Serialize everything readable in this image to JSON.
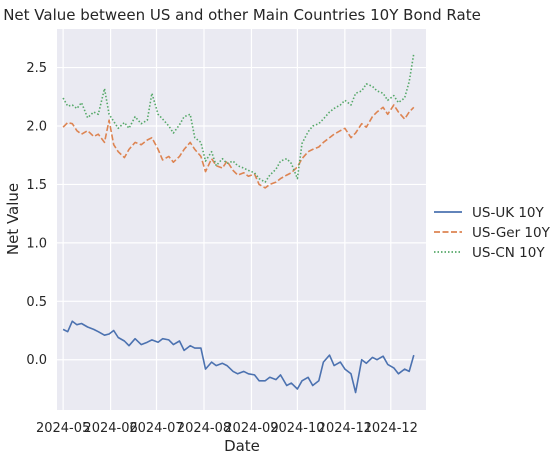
{
  "chart_data": {
    "type": "line",
    "title": "Net Value between US and other Main Countries 10Y Bond Rate",
    "xlabel": "Date",
    "ylabel": "Net Value",
    "xlim": [
      "2024-04-27",
      "2024-12-24"
    ],
    "ylim": [
      -0.43,
      2.83
    ],
    "x_ticks": [
      "2024-05-01",
      "2024-06-01",
      "2024-07-01",
      "2024-08-01",
      "2024-09-01",
      "2024-10-01",
      "2024-11-01",
      "2024-12-01"
    ],
    "x_tick_labels": [
      "2024-05",
      "2024-06",
      "2024-07",
      "2024-08",
      "2024-09",
      "2024-10",
      "2024-11",
      "2024-12"
    ],
    "y_ticks": [
      0.0,
      0.5,
      1.0,
      1.5,
      2.0,
      2.5
    ],
    "y_tick_labels": [
      "0.0",
      "0.5",
      "1.0",
      "1.5",
      "2.0",
      "2.5"
    ],
    "grid": true,
    "legend_position": "right",
    "background_color": "#eaeaf2",
    "series": [
      {
        "name": "US-UK 10Y",
        "color": "#4c72b0",
        "dash": "solid",
        "points": [
          [
            "2024-05-01",
            0.26
          ],
          [
            "2024-05-04",
            0.24
          ],
          [
            "2024-05-07",
            0.33
          ],
          [
            "2024-05-10",
            0.3
          ],
          [
            "2024-05-13",
            0.31
          ],
          [
            "2024-05-17",
            0.28
          ],
          [
            "2024-05-21",
            0.26
          ],
          [
            "2024-05-24",
            0.24
          ],
          [
            "2024-05-28",
            0.21
          ],
          [
            "2024-05-31",
            0.22
          ],
          [
            "2024-06-03",
            0.25
          ],
          [
            "2024-06-06",
            0.19
          ],
          [
            "2024-06-10",
            0.16
          ],
          [
            "2024-06-13",
            0.12
          ],
          [
            "2024-06-17",
            0.18
          ],
          [
            "2024-06-21",
            0.13
          ],
          [
            "2024-06-25",
            0.15
          ],
          [
            "2024-06-28",
            0.17
          ],
          [
            "2024-07-02",
            0.15
          ],
          [
            "2024-07-05",
            0.18
          ],
          [
            "2024-07-09",
            0.17
          ],
          [
            "2024-07-12",
            0.13
          ],
          [
            "2024-07-16",
            0.16
          ],
          [
            "2024-07-19",
            0.08
          ],
          [
            "2024-07-23",
            0.12
          ],
          [
            "2024-07-26",
            0.1
          ],
          [
            "2024-07-30",
            0.1
          ],
          [
            "2024-08-02",
            -0.08
          ],
          [
            "2024-08-06",
            -0.02
          ],
          [
            "2024-08-09",
            -0.05
          ],
          [
            "2024-08-13",
            -0.03
          ],
          [
            "2024-08-16",
            -0.05
          ],
          [
            "2024-08-20",
            -0.1
          ],
          [
            "2024-08-23",
            -0.12
          ],
          [
            "2024-08-27",
            -0.1
          ],
          [
            "2024-08-30",
            -0.12
          ],
          [
            "2024-09-03",
            -0.13
          ],
          [
            "2024-09-06",
            -0.18
          ],
          [
            "2024-09-10",
            -0.18
          ],
          [
            "2024-09-13",
            -0.15
          ],
          [
            "2024-09-17",
            -0.17
          ],
          [
            "2024-09-20",
            -0.13
          ],
          [
            "2024-09-24",
            -0.22
          ],
          [
            "2024-09-27",
            -0.2
          ],
          [
            "2024-10-01",
            -0.25
          ],
          [
            "2024-10-04",
            -0.18
          ],
          [
            "2024-10-08",
            -0.15
          ],
          [
            "2024-10-11",
            -0.22
          ],
          [
            "2024-10-15",
            -0.18
          ],
          [
            "2024-10-18",
            -0.02
          ],
          [
            "2024-10-22",
            0.04
          ],
          [
            "2024-10-25",
            -0.05
          ],
          [
            "2024-10-29",
            -0.02
          ],
          [
            "2024-11-01",
            -0.08
          ],
          [
            "2024-11-05",
            -0.12
          ],
          [
            "2024-11-08",
            -0.28
          ],
          [
            "2024-11-12",
            0.0
          ],
          [
            "2024-11-15",
            -0.03
          ],
          [
            "2024-11-19",
            0.02
          ],
          [
            "2024-11-22",
            0.0
          ],
          [
            "2024-11-26",
            0.03
          ],
          [
            "2024-11-29",
            -0.04
          ],
          [
            "2024-12-03",
            -0.07
          ],
          [
            "2024-12-06",
            -0.12
          ],
          [
            "2024-12-10",
            -0.08
          ],
          [
            "2024-12-13",
            -0.1
          ],
          [
            "2024-12-16",
            0.04
          ]
        ]
      },
      {
        "name": "US-Ger 10Y",
        "color": "#dd8452",
        "dash": "dashed",
        "points": [
          [
            "2024-05-01",
            1.99
          ],
          [
            "2024-05-04",
            2.03
          ],
          [
            "2024-05-07",
            2.02
          ],
          [
            "2024-05-10",
            1.96
          ],
          [
            "2024-05-13",
            1.93
          ],
          [
            "2024-05-17",
            1.96
          ],
          [
            "2024-05-21",
            1.91
          ],
          [
            "2024-05-24",
            1.93
          ],
          [
            "2024-05-28",
            1.86
          ],
          [
            "2024-05-31",
            2.05
          ],
          [
            "2024-06-03",
            1.84
          ],
          [
            "2024-06-06",
            1.78
          ],
          [
            "2024-06-10",
            1.73
          ],
          [
            "2024-06-13",
            1.8
          ],
          [
            "2024-06-17",
            1.86
          ],
          [
            "2024-06-21",
            1.84
          ],
          [
            "2024-06-25",
            1.88
          ],
          [
            "2024-06-28",
            1.9
          ],
          [
            "2024-07-02",
            1.8
          ],
          [
            "2024-07-05",
            1.71
          ],
          [
            "2024-07-09",
            1.74
          ],
          [
            "2024-07-12",
            1.69
          ],
          [
            "2024-07-16",
            1.74
          ],
          [
            "2024-07-19",
            1.8
          ],
          [
            "2024-07-23",
            1.86
          ],
          [
            "2024-07-26",
            1.8
          ],
          [
            "2024-07-30",
            1.74
          ],
          [
            "2024-08-02",
            1.61
          ],
          [
            "2024-08-06",
            1.72
          ],
          [
            "2024-08-09",
            1.66
          ],
          [
            "2024-08-13",
            1.64
          ],
          [
            "2024-08-16",
            1.7
          ],
          [
            "2024-08-20",
            1.62
          ],
          [
            "2024-08-23",
            1.58
          ],
          [
            "2024-08-27",
            1.6
          ],
          [
            "2024-08-30",
            1.57
          ],
          [
            "2024-09-03",
            1.59
          ],
          [
            "2024-09-06",
            1.5
          ],
          [
            "2024-09-10",
            1.47
          ],
          [
            "2024-09-13",
            1.5
          ],
          [
            "2024-09-17",
            1.52
          ],
          [
            "2024-09-20",
            1.55
          ],
          [
            "2024-09-24",
            1.58
          ],
          [
            "2024-09-27",
            1.6
          ],
          [
            "2024-10-01",
            1.65
          ],
          [
            "2024-10-04",
            1.72
          ],
          [
            "2024-10-08",
            1.78
          ],
          [
            "2024-10-11",
            1.8
          ],
          [
            "2024-10-15",
            1.82
          ],
          [
            "2024-10-18",
            1.86
          ],
          [
            "2024-10-22",
            1.9
          ],
          [
            "2024-10-25",
            1.93
          ],
          [
            "2024-10-29",
            1.96
          ],
          [
            "2024-11-01",
            1.98
          ],
          [
            "2024-11-05",
            1.9
          ],
          [
            "2024-11-08",
            1.94
          ],
          [
            "2024-11-12",
            2.02
          ],
          [
            "2024-11-15",
            1.99
          ],
          [
            "2024-11-19",
            2.08
          ],
          [
            "2024-11-22",
            2.12
          ],
          [
            "2024-11-26",
            2.16
          ],
          [
            "2024-11-29",
            2.1
          ],
          [
            "2024-12-03",
            2.18
          ],
          [
            "2024-12-06",
            2.12
          ],
          [
            "2024-12-10",
            2.06
          ],
          [
            "2024-12-13",
            2.12
          ],
          [
            "2024-12-16",
            2.16
          ]
        ]
      },
      {
        "name": "US-CN 10Y",
        "color": "#55a868",
        "dash": "dotted",
        "points": [
          [
            "2024-05-01",
            2.24
          ],
          [
            "2024-05-04",
            2.17
          ],
          [
            "2024-05-07",
            2.18
          ],
          [
            "2024-05-10",
            2.15
          ],
          [
            "2024-05-13",
            2.2
          ],
          [
            "2024-05-17",
            2.07
          ],
          [
            "2024-05-21",
            2.12
          ],
          [
            "2024-05-24",
            2.1
          ],
          [
            "2024-05-28",
            2.32
          ],
          [
            "2024-05-31",
            2.1
          ],
          [
            "2024-06-03",
            2.04
          ],
          [
            "2024-06-06",
            1.98
          ],
          [
            "2024-06-10",
            2.03
          ],
          [
            "2024-06-13",
            1.98
          ],
          [
            "2024-06-17",
            2.08
          ],
          [
            "2024-06-21",
            2.02
          ],
          [
            "2024-06-25",
            2.05
          ],
          [
            "2024-06-28",
            2.28
          ],
          [
            "2024-07-02",
            2.1
          ],
          [
            "2024-07-05",
            2.06
          ],
          [
            "2024-07-09",
            2.0
          ],
          [
            "2024-07-12",
            1.94
          ],
          [
            "2024-07-16",
            2.01
          ],
          [
            "2024-07-19",
            2.08
          ],
          [
            "2024-07-23",
            2.1
          ],
          [
            "2024-07-26",
            1.9
          ],
          [
            "2024-07-30",
            1.86
          ],
          [
            "2024-08-02",
            1.7
          ],
          [
            "2024-08-06",
            1.78
          ],
          [
            "2024-08-09",
            1.66
          ],
          [
            "2024-08-13",
            1.72
          ],
          [
            "2024-08-16",
            1.68
          ],
          [
            "2024-08-20",
            1.7
          ],
          [
            "2024-08-23",
            1.66
          ],
          [
            "2024-08-27",
            1.64
          ],
          [
            "2024-08-30",
            1.62
          ],
          [
            "2024-09-03",
            1.6
          ],
          [
            "2024-09-06",
            1.55
          ],
          [
            "2024-09-10",
            1.52
          ],
          [
            "2024-09-13",
            1.58
          ],
          [
            "2024-09-17",
            1.63
          ],
          [
            "2024-09-20",
            1.7
          ],
          [
            "2024-09-24",
            1.72
          ],
          [
            "2024-09-27",
            1.68
          ],
          [
            "2024-10-01",
            1.55
          ],
          [
            "2024-10-04",
            1.85
          ],
          [
            "2024-10-08",
            1.95
          ],
          [
            "2024-10-11",
            2.0
          ],
          [
            "2024-10-15",
            2.02
          ],
          [
            "2024-10-18",
            2.06
          ],
          [
            "2024-10-22",
            2.12
          ],
          [
            "2024-10-25",
            2.15
          ],
          [
            "2024-10-29",
            2.18
          ],
          [
            "2024-11-01",
            2.22
          ],
          [
            "2024-11-05",
            2.18
          ],
          [
            "2024-11-08",
            2.28
          ],
          [
            "2024-11-12",
            2.3
          ],
          [
            "2024-11-15",
            2.36
          ],
          [
            "2024-11-19",
            2.34
          ],
          [
            "2024-11-22",
            2.3
          ],
          [
            "2024-11-26",
            2.28
          ],
          [
            "2024-11-29",
            2.22
          ],
          [
            "2024-12-03",
            2.26
          ],
          [
            "2024-12-06",
            2.2
          ],
          [
            "2024-12-10",
            2.24
          ],
          [
            "2024-12-13",
            2.38
          ],
          [
            "2024-12-16",
            2.62
          ]
        ]
      }
    ]
  }
}
